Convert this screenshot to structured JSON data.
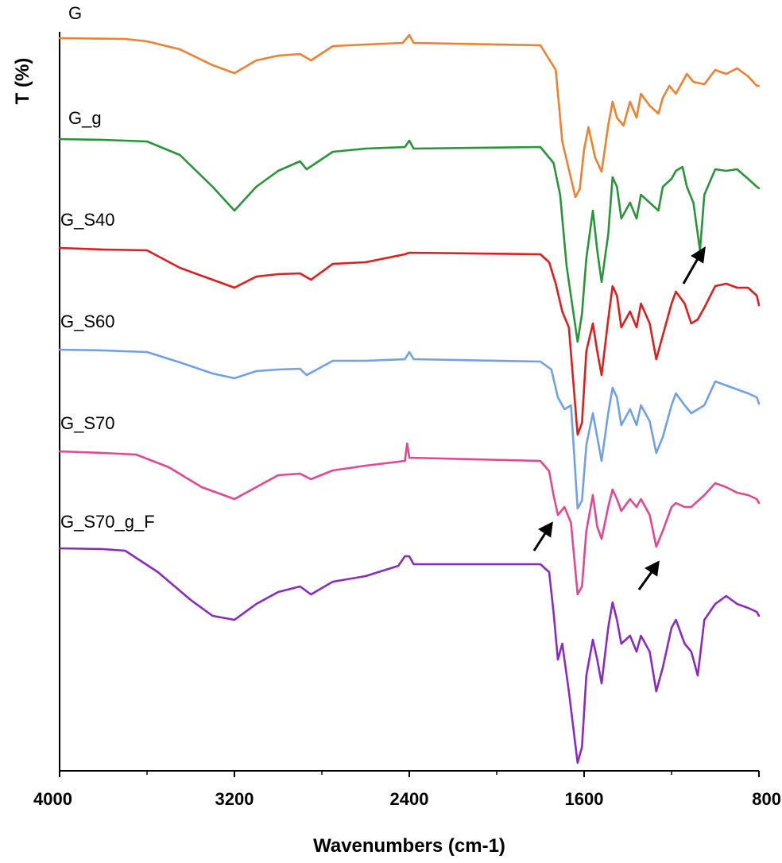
{
  "chart_data": {
    "type": "line",
    "title": "",
    "xlabel": "Wavenumbers (cm-1)",
    "ylabel": "T (%)",
    "xlim": [
      4000,
      800
    ],
    "x_reversed": true,
    "x_ticks": [
      "4000",
      "3200",
      "2400",
      "1600",
      "800"
    ],
    "y_ticks_shown": false,
    "grid": false,
    "legend": "inline labels at left above each trace",
    "stacked_offset": true,
    "series": [
      {
        "name": "G",
        "color": "#f07f2e",
        "points": [
          [
            4000,
            0
          ],
          [
            3700,
            -1
          ],
          [
            3600,
            -4
          ],
          [
            3450,
            -14
          ],
          [
            3300,
            -34
          ],
          [
            3200,
            -44
          ],
          [
            3100,
            -28
          ],
          [
            3000,
            -22
          ],
          [
            2900,
            -20
          ],
          [
            2850,
            -28
          ],
          [
            2750,
            -10
          ],
          [
            2600,
            -8
          ],
          [
            2430,
            -6
          ],
          [
            2400,
            4
          ],
          [
            2380,
            -6
          ],
          [
            1800,
            -9
          ],
          [
            1730,
            -40
          ],
          [
            1700,
            -130
          ],
          [
            1640,
            -200
          ],
          [
            1620,
            -190
          ],
          [
            1600,
            -140
          ],
          [
            1580,
            -112
          ],
          [
            1550,
            -150
          ],
          [
            1520,
            -168
          ],
          [
            1490,
            -110
          ],
          [
            1470,
            -80
          ],
          [
            1450,
            -100
          ],
          [
            1420,
            -110
          ],
          [
            1390,
            -80
          ],
          [
            1360,
            -100
          ],
          [
            1340,
            -70
          ],
          [
            1300,
            -85
          ],
          [
            1260,
            -95
          ],
          [
            1240,
            -75
          ],
          [
            1210,
            -60
          ],
          [
            1180,
            -70
          ],
          [
            1130,
            -45
          ],
          [
            1100,
            -55
          ],
          [
            1050,
            -58
          ],
          [
            1000,
            -40
          ],
          [
            950,
            -45
          ],
          [
            900,
            -38
          ],
          [
            850,
            -48
          ],
          [
            810,
            -60
          ],
          [
            800,
            -60
          ]
        ]
      },
      {
        "name": "G_g",
        "color": "#279538",
        "points": [
          [
            4000,
            0
          ],
          [
            3800,
            -1
          ],
          [
            3600,
            -3
          ],
          [
            3450,
            -20
          ],
          [
            3300,
            -60
          ],
          [
            3200,
            -90
          ],
          [
            3100,
            -60
          ],
          [
            3000,
            -40
          ],
          [
            2900,
            -28
          ],
          [
            2870,
            -38
          ],
          [
            2750,
            -16
          ],
          [
            2600,
            -12
          ],
          [
            2420,
            -10
          ],
          [
            2400,
            -2
          ],
          [
            2380,
            -12
          ],
          [
            1800,
            -10
          ],
          [
            1740,
            -30
          ],
          [
            1710,
            -70
          ],
          [
            1680,
            -160
          ],
          [
            1630,
            -255
          ],
          [
            1610,
            -220
          ],
          [
            1590,
            -150
          ],
          [
            1560,
            -90
          ],
          [
            1540,
            -140
          ],
          [
            1520,
            -180
          ],
          [
            1490,
            -120
          ],
          [
            1470,
            -48
          ],
          [
            1450,
            -60
          ],
          [
            1430,
            -100
          ],
          [
            1390,
            -80
          ],
          [
            1360,
            -100
          ],
          [
            1340,
            -70
          ],
          [
            1300,
            -80
          ],
          [
            1260,
            -90
          ],
          [
            1240,
            -60
          ],
          [
            1200,
            -50
          ],
          [
            1180,
            -40
          ],
          [
            1150,
            -35
          ],
          [
            1130,
            -60
          ],
          [
            1100,
            -80
          ],
          [
            1070,
            -140
          ],
          [
            1050,
            -70
          ],
          [
            1000,
            -38
          ],
          [
            950,
            -40
          ],
          [
            900,
            -38
          ],
          [
            850,
            -50
          ],
          [
            810,
            -60
          ],
          [
            800,
            -62
          ]
        ]
      },
      {
        "name": "G_S40",
        "color": "#e31b1b",
        "points": [
          [
            4000,
            0
          ],
          [
            3800,
            -2
          ],
          [
            3600,
            -3
          ],
          [
            3450,
            -25
          ],
          [
            3300,
            -40
          ],
          [
            3200,
            -50
          ],
          [
            3100,
            -36
          ],
          [
            3000,
            -33
          ],
          [
            2900,
            -32
          ],
          [
            2850,
            -40
          ],
          [
            2750,
            -20
          ],
          [
            2600,
            -18
          ],
          [
            2420,
            -8
          ],
          [
            2400,
            -6
          ],
          [
            1800,
            -8
          ],
          [
            1760,
            -18
          ],
          [
            1730,
            -45
          ],
          [
            1700,
            -80
          ],
          [
            1670,
            -100
          ],
          [
            1630,
            -235
          ],
          [
            1610,
            -220
          ],
          [
            1590,
            -130
          ],
          [
            1560,
            -95
          ],
          [
            1540,
            -130
          ],
          [
            1520,
            -160
          ],
          [
            1490,
            -90
          ],
          [
            1470,
            -48
          ],
          [
            1450,
            -60
          ],
          [
            1430,
            -100
          ],
          [
            1390,
            -80
          ],
          [
            1360,
            -100
          ],
          [
            1340,
            -70
          ],
          [
            1300,
            -95
          ],
          [
            1270,
            -140
          ],
          [
            1240,
            -110
          ],
          [
            1200,
            -70
          ],
          [
            1180,
            -55
          ],
          [
            1140,
            -70
          ],
          [
            1110,
            -95
          ],
          [
            1080,
            -90
          ],
          [
            1050,
            -75
          ],
          [
            1000,
            -48
          ],
          [
            950,
            -45
          ],
          [
            900,
            -50
          ],
          [
            850,
            -50
          ],
          [
            810,
            -60
          ],
          [
            800,
            -72
          ]
        ]
      },
      {
        "name": "G_S60",
        "color": "#6fa0ec",
        "points": [
          [
            4000,
            0
          ],
          [
            3800,
            -1
          ],
          [
            3600,
            -3
          ],
          [
            3450,
            -16
          ],
          [
            3300,
            -30
          ],
          [
            3200,
            -36
          ],
          [
            3100,
            -27
          ],
          [
            3000,
            -25
          ],
          [
            2900,
            -24
          ],
          [
            2870,
            -32
          ],
          [
            2750,
            -14
          ],
          [
            2600,
            -14
          ],
          [
            2420,
            -12
          ],
          [
            2400,
            -3
          ],
          [
            2380,
            -12
          ],
          [
            1800,
            -15
          ],
          [
            1750,
            -25
          ],
          [
            1720,
            -60
          ],
          [
            1690,
            -75
          ],
          [
            1660,
            -70
          ],
          [
            1630,
            -200
          ],
          [
            1610,
            -190
          ],
          [
            1590,
            -120
          ],
          [
            1560,
            -80
          ],
          [
            1540,
            -110
          ],
          [
            1520,
            -140
          ],
          [
            1490,
            -80
          ],
          [
            1470,
            -48
          ],
          [
            1450,
            -60
          ],
          [
            1430,
            -95
          ],
          [
            1390,
            -75
          ],
          [
            1360,
            -95
          ],
          [
            1340,
            -70
          ],
          [
            1300,
            -90
          ],
          [
            1270,
            -130
          ],
          [
            1240,
            -110
          ],
          [
            1200,
            -70
          ],
          [
            1180,
            -55
          ],
          [
            1140,
            -70
          ],
          [
            1110,
            -80
          ],
          [
            1050,
            -70
          ],
          [
            1000,
            -40
          ],
          [
            950,
            -45
          ],
          [
            900,
            -50
          ],
          [
            850,
            -55
          ],
          [
            810,
            -60
          ],
          [
            800,
            -68
          ]
        ]
      },
      {
        "name": "G_S70",
        "color": "#e6468f",
        "points": [
          [
            4000,
            0
          ],
          [
            3800,
            -2
          ],
          [
            3650,
            -4
          ],
          [
            3500,
            -20
          ],
          [
            3350,
            -45
          ],
          [
            3250,
            -55
          ],
          [
            3200,
            -60
          ],
          [
            3100,
            -45
          ],
          [
            3000,
            -30
          ],
          [
            2900,
            -28
          ],
          [
            2850,
            -35
          ],
          [
            2750,
            -24
          ],
          [
            2600,
            -18
          ],
          [
            2420,
            -12
          ],
          [
            2410,
            10
          ],
          [
            2400,
            -8
          ],
          [
            1800,
            -12
          ],
          [
            1760,
            -25
          ],
          [
            1740,
            -55
          ],
          [
            1720,
            -80
          ],
          [
            1690,
            -70
          ],
          [
            1660,
            -90
          ],
          [
            1630,
            -180
          ],
          [
            1610,
            -170
          ],
          [
            1590,
            -100
          ],
          [
            1560,
            -55
          ],
          [
            1540,
            -95
          ],
          [
            1520,
            -110
          ],
          [
            1490,
            -70
          ],
          [
            1470,
            -48
          ],
          [
            1450,
            -60
          ],
          [
            1430,
            -75
          ],
          [
            1390,
            -60
          ],
          [
            1360,
            -70
          ],
          [
            1340,
            -60
          ],
          [
            1300,
            -80
          ],
          [
            1270,
            -120
          ],
          [
            1240,
            -100
          ],
          [
            1200,
            -70
          ],
          [
            1180,
            -65
          ],
          [
            1140,
            -70
          ],
          [
            1110,
            -70
          ],
          [
            1050,
            -55
          ],
          [
            1000,
            -40
          ],
          [
            950,
            -45
          ],
          [
            900,
            -52
          ],
          [
            850,
            -55
          ],
          [
            810,
            -60
          ],
          [
            800,
            -65
          ]
        ]
      },
      {
        "name": "G_S70_g_F",
        "color": "#8a2ac2",
        "points": [
          [
            4000,
            0
          ],
          [
            3800,
            -1
          ],
          [
            3700,
            -3
          ],
          [
            3550,
            -30
          ],
          [
            3400,
            -65
          ],
          [
            3300,
            -85
          ],
          [
            3200,
            -90
          ],
          [
            3100,
            -70
          ],
          [
            3000,
            -55
          ],
          [
            2900,
            -48
          ],
          [
            2850,
            -58
          ],
          [
            2750,
            -42
          ],
          [
            2600,
            -35
          ],
          [
            2450,
            -22
          ],
          [
            2420,
            -10
          ],
          [
            2400,
            -10
          ],
          [
            2380,
            -20
          ],
          [
            1800,
            -20
          ],
          [
            1760,
            -30
          ],
          [
            1740,
            -80
          ],
          [
            1720,
            -140
          ],
          [
            1700,
            -120
          ],
          [
            1670,
            -180
          ],
          [
            1630,
            -270
          ],
          [
            1610,
            -250
          ],
          [
            1590,
            -160
          ],
          [
            1560,
            -115
          ],
          [
            1540,
            -140
          ],
          [
            1520,
            -170
          ],
          [
            1490,
            -100
          ],
          [
            1470,
            -68
          ],
          [
            1450,
            -90
          ],
          [
            1430,
            -120
          ],
          [
            1390,
            -110
          ],
          [
            1360,
            -130
          ],
          [
            1340,
            -110
          ],
          [
            1300,
            -130
          ],
          [
            1270,
            -180
          ],
          [
            1240,
            -150
          ],
          [
            1200,
            -100
          ],
          [
            1180,
            -90
          ],
          [
            1140,
            -120
          ],
          [
            1110,
            -130
          ],
          [
            1080,
            -160
          ],
          [
            1050,
            -90
          ],
          [
            1000,
            -70
          ],
          [
            950,
            -60
          ],
          [
            900,
            -70
          ],
          [
            850,
            -75
          ],
          [
            810,
            -80
          ],
          [
            800,
            -85
          ]
        ]
      }
    ],
    "annotations": [
      "arrow",
      "arrow",
      "arrow"
    ]
  }
}
